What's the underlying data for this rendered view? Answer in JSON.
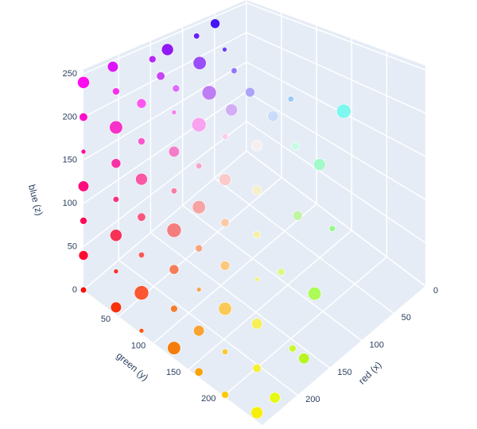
{
  "chart_data": {
    "type": "scatter3d",
    "xaxis_title": "red (x)",
    "yaxis_title": "green (y)",
    "zaxis_title": "blue (z)",
    "xlim": [
      0,
      255
    ],
    "ylim": [
      0,
      255
    ],
    "zlim": [
      0,
      255
    ],
    "xticks": [
      0,
      50,
      100,
      150,
      200
    ],
    "yticks": [
      50,
      100,
      150,
      200
    ],
    "zticks": [
      0,
      50,
      100,
      150,
      200,
      250
    ],
    "grid": true,
    "x": [
      60,
      100,
      140,
      180,
      220,
      100,
      150,
      200,
      140,
      190,
      220,
      170,
      210,
      150,
      200,
      230,
      200,
      170,
      140,
      190,
      160,
      200,
      120,
      220,
      180,
      255,
      248,
      252,
      245,
      250,
      253,
      247,
      255,
      248,
      252,
      245,
      250,
      253,
      247,
      255,
      248,
      252,
      245,
      250,
      253,
      247,
      255,
      248,
      252,
      245,
      250,
      253,
      247,
      255,
      248,
      252,
      245,
      250,
      253,
      247,
      255,
      248,
      252,
      245,
      250,
      253,
      247,
      255,
      248,
      252,
      245,
      250,
      253,
      247
    ],
    "y": [
      10,
      20,
      15,
      30,
      10,
      60,
      70,
      60,
      110,
      120,
      100,
      160,
      170,
      200,
      220,
      250,
      248,
      252,
      250,
      246,
      250,
      252,
      248,
      250,
      246,
      0,
      40,
      80,
      120,
      160,
      200,
      240,
      0,
      40,
      80,
      120,
      160,
      200,
      240,
      0,
      40,
      80,
      120,
      160,
      200,
      240,
      0,
      40,
      80,
      120,
      160,
      200,
      240,
      0,
      40,
      80,
      120,
      160,
      200,
      240,
      0,
      40,
      80,
      120,
      160,
      200,
      240,
      0,
      40,
      80,
      120,
      160,
      200,
      240
    ],
    "z": [
      248,
      250,
      245,
      252,
      250,
      246,
      250,
      248,
      250,
      244,
      252,
      250,
      246,
      248,
      250,
      10,
      40,
      80,
      130,
      160,
      200,
      230,
      240,
      120,
      20,
      0,
      0,
      0,
      0,
      0,
      0,
      0,
      40,
      40,
      40,
      40,
      40,
      40,
      40,
      80,
      80,
      80,
      80,
      80,
      80,
      80,
      120,
      120,
      120,
      120,
      120,
      120,
      120,
      160,
      160,
      160,
      160,
      160,
      160,
      160,
      200,
      200,
      200,
      200,
      200,
      200,
      200,
      240,
      240,
      240,
      240,
      240,
      240,
      240
    ],
    "size": [
      8,
      5,
      10,
      6,
      9,
      4,
      11,
      7,
      5,
      12,
      6,
      8,
      10,
      5,
      9,
      9,
      6,
      11,
      5,
      8,
      10,
      7,
      12,
      6,
      9,
      5,
      9,
      4,
      11,
      7,
      6,
      10,
      8,
      4,
      12,
      6,
      9,
      5,
      7,
      6,
      10,
      5,
      8,
      4,
      11,
      9,
      9,
      5,
      7,
      12,
      6,
      8,
      4,
      4,
      8,
      10,
      5,
      11,
      7,
      6,
      7,
      11,
      6,
      9,
      5,
      10,
      8,
      10,
      6,
      8,
      4,
      12,
      5,
      9
    ]
  }
}
